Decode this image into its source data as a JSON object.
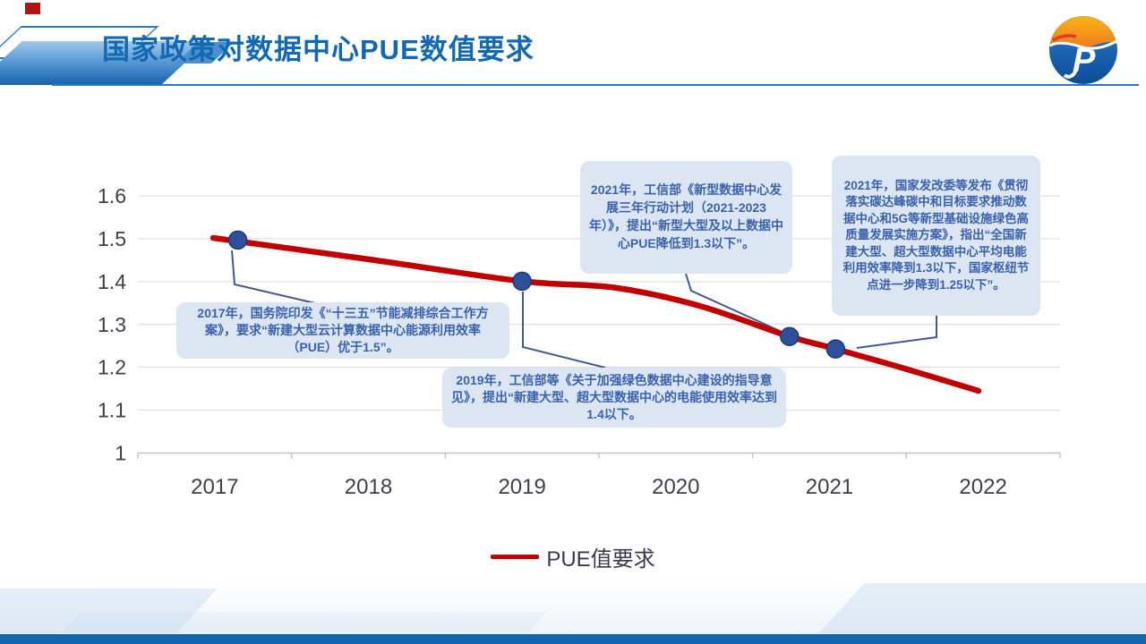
{
  "slide": {
    "title": "国家政策对数据中心PUE数值要求"
  },
  "colors": {
    "title": "#1268B3",
    "line": "#C00000",
    "marker_fill": "#2E4F99",
    "marker_edge": "#1F3B77",
    "connector": "#41598C",
    "grid": "#D9D9D9",
    "axis": "#C5C5C5",
    "axis_text": "#3F3F4E",
    "callout_bg": "#DCE6F2",
    "callout_text": "#3A62AC",
    "bottom_band": "#1064B0"
  },
  "chart_data": {
    "type": "line",
    "title": "",
    "xlabel": "",
    "ylabel": "",
    "categories": [
      "2017",
      "2018",
      "2019",
      "2020",
      "2021",
      "2022"
    ],
    "y_ticks": [
      "1",
      "1.1",
      "1.2",
      "1.3",
      "1.4",
      "1.5",
      "1.6"
    ],
    "ylim": [
      1.0,
      1.6
    ],
    "grid": true,
    "legend_position": "bottom",
    "series": [
      {
        "name": "PUE值要求",
        "color": "#C00000",
        "points": [
          [
            2016.99,
            1.502
          ],
          [
            2018.0,
            1.452
          ],
          [
            2019.0,
            1.401
          ],
          [
            2019.6,
            1.386
          ],
          [
            2020.15,
            1.344
          ],
          [
            2020.74,
            1.272
          ],
          [
            2021.04,
            1.243
          ],
          [
            2021.5,
            1.196
          ],
          [
            2021.97,
            1.145
          ]
        ],
        "markers": [
          [
            2017.15,
            1.497
          ],
          [
            2019.0,
            1.401
          ],
          [
            2020.74,
            1.272
          ],
          [
            2021.04,
            1.243
          ]
        ]
      }
    ]
  },
  "legend": {
    "label": "PUE值要求"
  },
  "callouts": [
    {
      "id": "2017",
      "text": "2017年，国务院印发《“十三五”节能减排综合工作方案》，要求“新建大型云计算数据中心能源利用效率（PUE）优于1.5”。"
    },
    {
      "id": "2019",
      "text": "2019年，工信部等《关于加强绿色数据中心建设的指导意见》，提出“新建大型、超大型数据中心的电能使用效率达到1.4以下。"
    },
    {
      "id": "2021-miit",
      "text": "2021年，工信部《新型数据中心发展三年行动计划（2021-2023年）》，提出“新型大型及以上数据中心PUE降低到1.3以下”。"
    },
    {
      "id": "2021-ndrc",
      "text": "2021年，国家发改委等发布《贯彻落实碳达峰碳中和目标要求推动数据中心和5G等新型基础设施绿色高质量发展实施方案》，指出“全国新建大型、超大型数据中心平均电能利用效率降到1.3以下，国家枢纽节点进一步降到1.25以下”。"
    }
  ]
}
